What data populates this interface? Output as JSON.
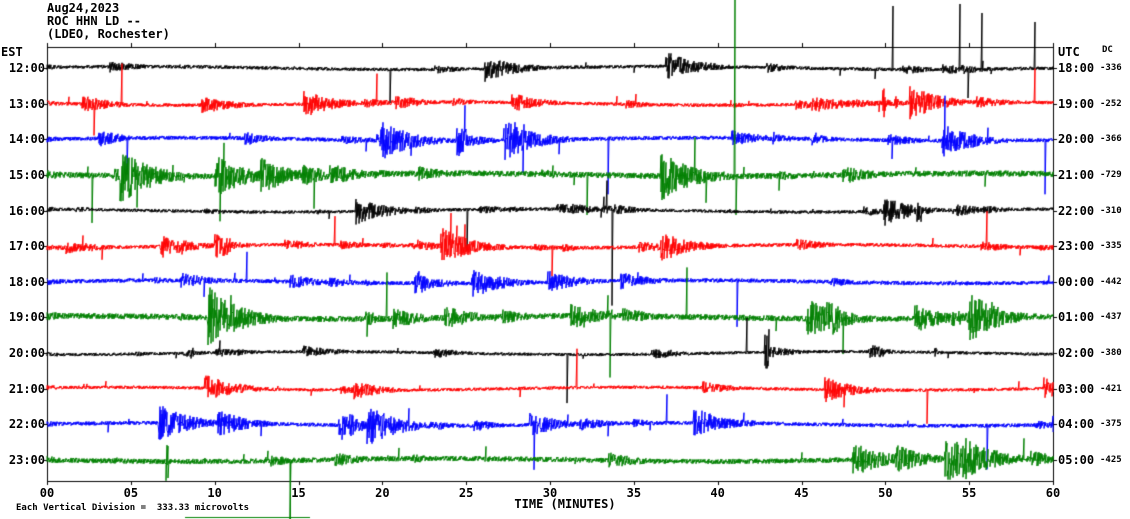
{
  "header": {
    "date": "Aug24,2023",
    "station": "ROC HHN LD --",
    "location": "(LDEO, Rochester)"
  },
  "axes": {
    "left_timezone_label": "EST",
    "right_timezone_label": "UTC",
    "dc_column_label": "DC",
    "x_axis_title": "TIME (MINUTES)",
    "x_tick_labels": [
      "00",
      "05",
      "10",
      "15",
      "20",
      "25",
      "30",
      "35",
      "40",
      "45",
      "50",
      "55",
      "60"
    ]
  },
  "footer": {
    "scale_note": "Each Vertical Division =  333.33 microvolts"
  },
  "chart_data": {
    "type": "line",
    "title": "ROC HHN LD -- (LDEO, Rochester) helicorder for Aug24,2023",
    "x_unit": "minutes",
    "x_range": [
      0,
      60
    ],
    "x_tick_step": 5,
    "vertical_division_microvolts": 333.33,
    "trace_color_cycle": [
      "#000000",
      "#ff0000",
      "#0000ff",
      "#008000"
    ],
    "waveform_note": "Continuous seismic noise traces; individual sample values are not resolvable at this scale and are rendered as stochastic noise.",
    "rows": [
      {
        "est": "12:00",
        "utc": "18:00",
        "dc_offset": "-336",
        "color": "#000000"
      },
      {
        "est": "13:00",
        "utc": "19:00",
        "dc_offset": "-252",
        "color": "#ff0000"
      },
      {
        "est": "14:00",
        "utc": "20:00",
        "dc_offset": "-366",
        "color": "#0000ff"
      },
      {
        "est": "15:00",
        "utc": "21:00",
        "dc_offset": "-729",
        "color": "#008000"
      },
      {
        "est": "16:00",
        "utc": "22:00",
        "dc_offset": "-310",
        "color": "#000000"
      },
      {
        "est": "17:00",
        "utc": "23:00",
        "dc_offset": "-335",
        "color": "#ff0000"
      },
      {
        "est": "18:00",
        "utc": "00:00",
        "dc_offset": "-442",
        "color": "#0000ff"
      },
      {
        "est": "19:00",
        "utc": "01:00",
        "dc_offset": "-437",
        "color": "#008000"
      },
      {
        "est": "20:00",
        "utc": "02:00",
        "dc_offset": "-380",
        "color": "#000000"
      },
      {
        "est": "21:00",
        "utc": "03:00",
        "dc_offset": "-421",
        "color": "#ff0000"
      },
      {
        "est": "22:00",
        "utc": "04:00",
        "dc_offset": "-375",
        "color": "#0000ff"
      },
      {
        "est": "23:00",
        "utc": "05:00",
        "dc_offset": "-425",
        "color": "#008000"
      }
    ]
  }
}
